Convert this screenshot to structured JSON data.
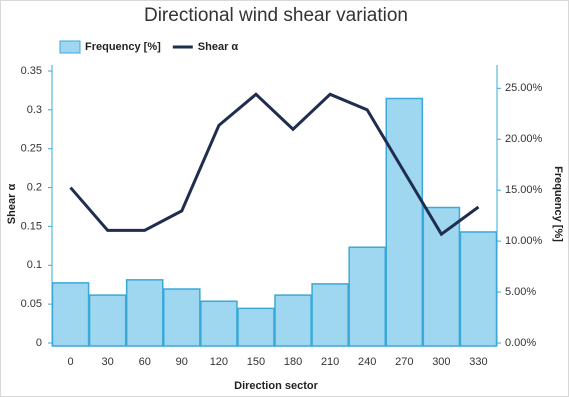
{
  "chart_data": {
    "type": "bar-line",
    "title": "Directional wind shear variation",
    "x_label": "Direction sector",
    "y_label": "Shear α",
    "y2_label": "Frequency [%]",
    "categories": [
      "0",
      "30",
      "60",
      "90",
      "120",
      "150",
      "180",
      "210",
      "240",
      "270",
      "300",
      "330"
    ],
    "series": [
      {
        "name": "Frequency [%]",
        "color": "#9fd7f0",
        "axis": "y2",
        "kind": "bar",
        "values": [
          5.9,
          4.7,
          6.2,
          5.3,
          4.1,
          3.4,
          4.7,
          5.8,
          9.4,
          24.0,
          13.3,
          10.9
        ]
      },
      {
        "name": "Shear α",
        "color": "#1f2d4f",
        "axis": "y",
        "kind": "line",
        "values": [
          0.2,
          0.145,
          0.145,
          0.17,
          0.28,
          0.32,
          0.275,
          0.32,
          0.3,
          0.22,
          0.14,
          0.175
        ]
      }
    ],
    "ylim": [
      0,
      0.35
    ],
    "yticks": [
      0,
      0.05,
      0.1,
      0.15,
      0.2,
      0.25,
      0.3,
      0.35
    ],
    "y2lim": [
      0,
      26.7
    ],
    "y2ticks": [
      {
        "value": 0,
        "label": "0.00%"
      },
      {
        "value": 5,
        "label": "5.00%"
      },
      {
        "value": 10,
        "label": "10.00%"
      },
      {
        "value": 15,
        "label": "15.00%"
      },
      {
        "value": 20,
        "label": "20.00%"
      },
      {
        "value": 25,
        "label": "25.00%"
      }
    ],
    "grid": false
  }
}
